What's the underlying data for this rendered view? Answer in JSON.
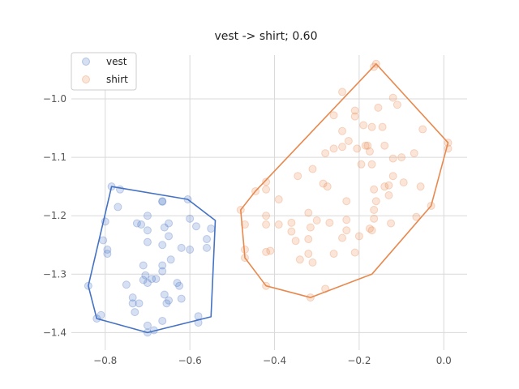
{
  "chart_data": {
    "type": "scatter",
    "title": "vest -> shirt; 0.60",
    "xlabel": "",
    "ylabel": "",
    "xlim": [
      -0.88,
      0.055
    ],
    "ylim": [
      -1.43,
      -0.925
    ],
    "xticks": [
      -0.8,
      -0.6,
      -0.4,
      -0.2,
      0.0
    ],
    "xtick_labels": [
      "−0.8",
      "−0.6",
      "−0.4",
      "−0.2",
      "0.0"
    ],
    "yticks": [
      -1.4,
      -1.3,
      -1.2,
      -1.1,
      -1.0
    ],
    "ytick_labels": [
      "−1.4",
      "−1.3",
      "−1.2",
      "−1.1",
      "−1.0"
    ],
    "grid": true,
    "legend": "top-left",
    "series": [
      {
        "name": "vest",
        "color": "#4472c4",
        "points": [
          [
            -0.785,
            -1.15
          ],
          [
            -0.765,
            -1.155
          ],
          [
            -0.8,
            -1.21
          ],
          [
            -0.77,
            -1.185
          ],
          [
            -0.795,
            -1.258
          ],
          [
            -0.795,
            -1.265
          ],
          [
            -0.805,
            -1.242
          ],
          [
            -0.725,
            -1.213
          ],
          [
            -0.715,
            -1.215
          ],
          [
            -0.7,
            -1.2
          ],
          [
            -0.7,
            -1.225
          ],
          [
            -0.7,
            -1.245
          ],
          [
            -0.665,
            -1.175
          ],
          [
            -0.665,
            -1.176
          ],
          [
            -0.66,
            -1.22
          ],
          [
            -0.65,
            -1.213
          ],
          [
            -0.65,
            -1.235
          ],
          [
            -0.665,
            -1.25
          ],
          [
            -0.645,
            -1.275
          ],
          [
            -0.665,
            -1.285
          ],
          [
            -0.665,
            -1.295
          ],
          [
            -0.71,
            -1.285
          ],
          [
            -0.705,
            -1.302
          ],
          [
            -0.71,
            -1.31
          ],
          [
            -0.7,
            -1.315
          ],
          [
            -0.69,
            -1.308
          ],
          [
            -0.68,
            -1.308
          ],
          [
            -0.66,
            -1.335
          ],
          [
            -0.655,
            -1.35
          ],
          [
            -0.65,
            -1.345
          ],
          [
            -0.63,
            -1.315
          ],
          [
            -0.625,
            -1.32
          ],
          [
            -0.62,
            -1.342
          ],
          [
            -0.62,
            -1.255
          ],
          [
            -0.6,
            -1.258
          ],
          [
            -0.6,
            -1.205
          ],
          [
            -0.585,
            -1.218
          ],
          [
            -0.605,
            -1.172
          ],
          [
            -0.55,
            -1.222
          ],
          [
            -0.56,
            -1.24
          ],
          [
            -0.56,
            -1.255
          ],
          [
            -0.75,
            -1.318
          ],
          [
            -0.735,
            -1.34
          ],
          [
            -0.735,
            -1.35
          ],
          [
            -0.72,
            -1.35
          ],
          [
            -0.73,
            -1.365
          ],
          [
            -0.7,
            -1.388
          ],
          [
            -0.7,
            -1.4
          ],
          [
            -0.685,
            -1.396
          ],
          [
            -0.665,
            -1.38
          ],
          [
            -0.58,
            -1.372
          ],
          [
            -0.58,
            -1.383
          ],
          [
            -0.81,
            -1.37
          ],
          [
            -0.82,
            -1.376
          ],
          [
            -0.84,
            -1.32
          ]
        ],
        "hull": [
          [
            -0.785,
            -1.15
          ],
          [
            -0.605,
            -1.172
          ],
          [
            -0.54,
            -1.208
          ],
          [
            -0.55,
            -1.373
          ],
          [
            -0.7,
            -1.4
          ],
          [
            -0.82,
            -1.376
          ],
          [
            -0.84,
            -1.32
          ]
        ]
      },
      {
        "name": "shirt",
        "color": "#e8894f",
        "points": [
          [
            -0.16,
            -0.94
          ],
          [
            -0.165,
            -0.945
          ],
          [
            -0.24,
            -0.988
          ],
          [
            -0.26,
            -1.028
          ],
          [
            -0.24,
            -1.055
          ],
          [
            -0.21,
            -1.02
          ],
          [
            -0.21,
            -1.03
          ],
          [
            -0.155,
            -1.015
          ],
          [
            -0.12,
            -0.998
          ],
          [
            -0.11,
            -1.01
          ],
          [
            -0.19,
            -1.045
          ],
          [
            -0.17,
            -1.048
          ],
          [
            -0.145,
            -1.048
          ],
          [
            -0.05,
            -1.052
          ],
          [
            -0.225,
            -1.072
          ],
          [
            -0.205,
            -1.085
          ],
          [
            -0.185,
            -1.08
          ],
          [
            -0.18,
            -1.08
          ],
          [
            -0.175,
            -1.09
          ],
          [
            -0.14,
            -1.08
          ],
          [
            -0.12,
            -1.102
          ],
          [
            -0.1,
            -1.1
          ],
          [
            -0.07,
            -1.093
          ],
          [
            -0.195,
            -1.112
          ],
          [
            -0.17,
            -1.112
          ],
          [
            -0.24,
            -1.082
          ],
          [
            -0.26,
            -1.085
          ],
          [
            -0.28,
            -1.093
          ],
          [
            0.01,
            -1.075
          ],
          [
            0.01,
            -1.085
          ],
          [
            -0.12,
            -1.132
          ],
          [
            -0.13,
            -1.148
          ],
          [
            -0.095,
            -1.143
          ],
          [
            -0.055,
            -1.15
          ],
          [
            -0.165,
            -1.155
          ],
          [
            -0.16,
            -1.175
          ],
          [
            -0.165,
            -1.19
          ],
          [
            -0.13,
            -1.165
          ],
          [
            -0.23,
            -1.175
          ],
          [
            -0.285,
            -1.145
          ],
          [
            -0.275,
            -1.15
          ],
          [
            -0.31,
            -1.12
          ],
          [
            -0.345,
            -1.132
          ],
          [
            -0.42,
            -1.142
          ],
          [
            -0.42,
            -1.155
          ],
          [
            -0.39,
            -1.172
          ],
          [
            -0.445,
            -1.158
          ],
          [
            -0.48,
            -1.19
          ],
          [
            -0.47,
            -1.215
          ],
          [
            -0.42,
            -1.2
          ],
          [
            -0.42,
            -1.215
          ],
          [
            -0.39,
            -1.215
          ],
          [
            -0.36,
            -1.212
          ],
          [
            -0.32,
            -1.195
          ],
          [
            -0.3,
            -1.208
          ],
          [
            -0.315,
            -1.22
          ],
          [
            -0.27,
            -1.212
          ],
          [
            -0.23,
            -1.207
          ],
          [
            -0.23,
            -1.225
          ],
          [
            -0.2,
            -1.235
          ],
          [
            -0.165,
            -1.205
          ],
          [
            -0.175,
            -1.222
          ],
          [
            -0.17,
            -1.225
          ],
          [
            -0.14,
            -1.15
          ],
          [
            -0.065,
            -1.202
          ],
          [
            -0.125,
            -1.213
          ],
          [
            -0.03,
            -1.183
          ],
          [
            -0.36,
            -1.227
          ],
          [
            -0.32,
            -1.24
          ],
          [
            -0.35,
            -1.243
          ],
          [
            -0.41,
            -1.26
          ],
          [
            -0.42,
            -1.262
          ],
          [
            -0.47,
            -1.258
          ],
          [
            -0.47,
            -1.272
          ],
          [
            -0.42,
            -1.32
          ],
          [
            -0.34,
            -1.275
          ],
          [
            -0.32,
            -1.265
          ],
          [
            -0.31,
            -1.28
          ],
          [
            -0.26,
            -1.265
          ],
          [
            -0.24,
            -1.238
          ],
          [
            -0.21,
            -1.263
          ],
          [
            -0.28,
            -1.325
          ],
          [
            -0.315,
            -1.34
          ]
        ],
        "hull": [
          [
            -0.16,
            -0.94
          ],
          [
            0.01,
            -1.075
          ],
          [
            -0.03,
            -1.183
          ],
          [
            -0.17,
            -1.3
          ],
          [
            -0.315,
            -1.34
          ],
          [
            -0.42,
            -1.32
          ],
          [
            -0.47,
            -1.272
          ],
          [
            -0.48,
            -1.19
          ],
          [
            -0.445,
            -1.158
          ]
        ]
      }
    ]
  }
}
